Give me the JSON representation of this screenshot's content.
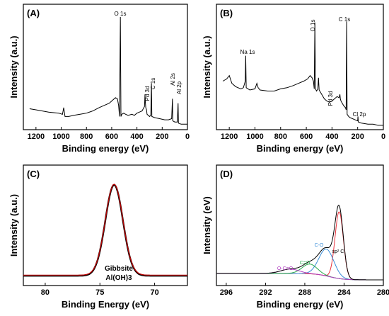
{
  "chart_data": [
    {
      "panel": "(A)",
      "type": "line",
      "xlabel": "Binding energy (eV)",
      "ylabel": "Intensity (a.u.)",
      "xlim": [
        1300,
        0
      ],
      "xticks": [
        1200,
        1000,
        800,
        600,
        400,
        200,
        0
      ],
      "x_reversed": true,
      "y_ticks_shown": false,
      "annotations": [
        "O 1s",
        "Pd 3d",
        "C 1s",
        "Al 2s",
        "Al 2p"
      ],
      "series": [
        {
          "color": "#000000",
          "points": [
            [
              1250,
              0.17
            ],
            [
              1200,
              0.16
            ],
            [
              1100,
              0.14
            ],
            [
              1020,
              0.13
            ],
            [
              990,
              0.12
            ],
            [
              980,
              0.18
            ],
            [
              970,
              0.1
            ],
            [
              940,
              0.1
            ],
            [
              900,
              0.11
            ],
            [
              850,
              0.12
            ],
            [
              800,
              0.13
            ],
            [
              750,
              0.15
            ],
            [
              700,
              0.18
            ],
            [
              660,
              0.2
            ],
            [
              620,
              0.22
            ],
            [
              590,
              0.25
            ],
            [
              570,
              0.27
            ],
            [
              555,
              0.26
            ],
            [
              545,
              0.2
            ],
            [
              538,
              0.1
            ],
            [
              531,
              1.0
            ],
            [
              527,
              0.1
            ],
            [
              520,
              0.12
            ],
            [
              505,
              0.13
            ],
            [
              490,
              0.12
            ],
            [
              470,
              0.11
            ],
            [
              440,
              0.12
            ],
            [
              420,
              0.11
            ],
            [
              400,
              0.13
            ],
            [
              380,
              0.14
            ],
            [
              360,
              0.15
            ],
            [
              345,
              0.18
            ],
            [
              340,
              0.19
            ],
            [
              336,
              0.3
            ],
            [
              333,
              0.22
            ],
            [
              330,
              0.18
            ],
            [
              324,
              0.16
            ],
            [
              320,
              0.12
            ],
            [
              300,
              0.1
            ],
            [
              290,
              0.11
            ],
            [
              285,
              0.4
            ],
            [
              282,
              0.1
            ],
            [
              260,
              0.09
            ],
            [
              220,
              0.08
            ],
            [
              180,
              0.07
            ],
            [
              150,
              0.07
            ],
            [
              125,
              0.08
            ],
            [
              119,
              0.26
            ],
            [
              116,
              0.06
            ],
            [
              100,
              0.05
            ],
            [
              80,
              0.05
            ],
            [
              74,
              0.22
            ],
            [
              71,
              0.04
            ],
            [
              50,
              0.03
            ],
            [
              20,
              0.03
            ],
            [
              0,
              0.03
            ]
          ]
        }
      ]
    },
    {
      "panel": "(B)",
      "type": "line",
      "xlabel": "Binding energy (eV)",
      "ylabel": "Intensity (a.u.)",
      "xlim": [
        1300,
        0
      ],
      "xticks": [
        1200,
        1000,
        800,
        600,
        400,
        200,
        0
      ],
      "x_reversed": true,
      "y_ticks_shown": false,
      "annotations": [
        "Na 1s",
        "O 1s",
        "Pd 3d",
        "C 1s",
        "Cl 2p"
      ],
      "series": [
        {
          "color": "#000000",
          "points": [
            [
              1250,
              0.42
            ],
            [
              1220,
              0.44
            ],
            [
              1200,
              0.47
            ],
            [
              1180,
              0.4
            ],
            [
              1150,
              0.37
            ],
            [
              1110,
              0.35
            ],
            [
              1090,
              0.36
            ],
            [
              1075,
              0.42
            ],
            [
              1072,
              0.65
            ],
            [
              1068,
              0.36
            ],
            [
              1040,
              0.34
            ],
            [
              1000,
              0.35
            ],
            [
              985,
              0.4
            ],
            [
              975,
              0.36
            ],
            [
              960,
              0.34
            ],
            [
              900,
              0.33
            ],
            [
              850,
              0.33
            ],
            [
              800,
              0.35
            ],
            [
              750,
              0.36
            ],
            [
              700,
              0.38
            ],
            [
              660,
              0.4
            ],
            [
              620,
              0.42
            ],
            [
              590,
              0.44
            ],
            [
              570,
              0.47
            ],
            [
              555,
              0.45
            ],
            [
              545,
              0.42
            ],
            [
              538,
              0.35
            ],
            [
              533,
              0.95
            ],
            [
              529,
              0.35
            ],
            [
              520,
              0.33
            ],
            [
              510,
              0.35
            ],
            [
              505,
              0.45
            ],
            [
              500,
              0.34
            ],
            [
              480,
              0.3
            ],
            [
              460,
              0.26
            ],
            [
              440,
              0.24
            ],
            [
              420,
              0.23
            ],
            [
              400,
              0.24
            ],
            [
              380,
              0.26
            ],
            [
              360,
              0.28
            ],
            [
              345,
              0.27
            ],
            [
              338,
              0.3
            ],
            [
              335,
              0.26
            ],
            [
              330,
              0.24
            ],
            [
              310,
              0.2
            ],
            [
              295,
              0.18
            ],
            [
              290,
              0.16
            ],
            [
              286,
              0.96
            ],
            [
              282,
              0.12
            ],
            [
              270,
              0.1
            ],
            [
              260,
              0.09
            ],
            [
              240,
              0.08
            ],
            [
              220,
              0.07
            ],
            [
              200,
              0.06
            ],
            [
              198,
              0.1
            ],
            [
              195,
              0.05
            ],
            [
              170,
              0.04
            ],
            [
              120,
              0.03
            ],
            [
              80,
              0.03
            ],
            [
              40,
              0.02
            ],
            [
              0,
              0.02
            ]
          ]
        }
      ]
    },
    {
      "panel": "(C)",
      "type": "line",
      "xlabel": "Binding Energy (eV)",
      "ylabel": "Intensity (a.u.)",
      "xlim": [
        82,
        67
      ],
      "xticks": [
        80,
        75,
        70
      ],
      "x_reversed": true,
      "y_ticks_shown": false,
      "annotations": [
        "Gibbsite",
        "Al(OH)3"
      ],
      "series": [
        {
          "name": "",
          "color": "#c00000",
          "peak_center": 73.7,
          "peak_fwhm": 1.9,
          "baseline": 0.02
        }
      ]
    },
    {
      "panel": "(D)",
      "type": "line",
      "xlabel": "Binding energy (eV)",
      "ylabel": "Intensity (eV)",
      "xlim": [
        297,
        280
      ],
      "xticks": [
        296,
        292,
        288,
        284,
        280
      ],
      "x_reversed": true,
      "y_ticks_shown": false,
      "annotations": [
        "O-C=O",
        "C=O",
        "C-O",
        "sp² C"
      ],
      "components": [
        {
          "label": "sp² C",
          "color": "#e8323c",
          "center": 284.5,
          "fwhm": 1.0,
          "height": 0.62
        },
        {
          "label": "C-O",
          "color": "#3a8ed8",
          "center": 285.8,
          "fwhm": 1.8,
          "height": 0.25
        },
        {
          "label": "C=O",
          "color": "#28a84a",
          "center": 287.5,
          "fwhm": 1.8,
          "height": 0.09
        },
        {
          "label": "O-C=O",
          "color": "#b040c0",
          "center": 289.5,
          "fwhm": 2.2,
          "height": 0.04
        }
      ],
      "envelope_color": "#000000",
      "background_color": "#6a6aa0",
      "baseline": 0.06
    }
  ]
}
